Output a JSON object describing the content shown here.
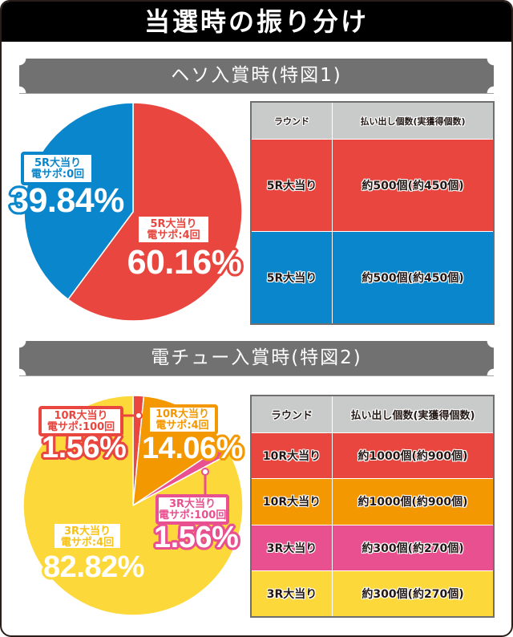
{
  "title": "当選時の振り分け",
  "colors": {
    "red": "#e8463f",
    "blue": "#0a86cc",
    "orange": "#f39800",
    "pink": "#e8508f",
    "yellow": "#fdd83a",
    "yellow_text": "#f5c218",
    "table_header": "#c9caca"
  },
  "sections": [
    {
      "banner": "ヘソ入賞時(特図1)",
      "labels": [
        {
          "line1": "5R大当り",
          "line2": "電サポ:0回",
          "pct": "39.84%",
          "color": "#0a86cc"
        },
        {
          "line1": "5R大当り",
          "line2": "電サポ:4回",
          "pct": "60.16%",
          "color": "#e8463f"
        }
      ],
      "table": {
        "headers": [
          "ラウンド",
          "払い出し個数(実獲得個数)"
        ],
        "rows": [
          {
            "round": "5R大当り",
            "payout": "約500個(約450個)",
            "color": "#e8463f"
          },
          {
            "round": "5R大当り",
            "payout": "約500個(約450個)",
            "color": "#0a86cc"
          }
        ]
      }
    },
    {
      "banner": "電チュー入賞時(特図2)",
      "labels": [
        {
          "line1": "10R大当り",
          "line2": "電サポ:100回",
          "pct": "1.56%",
          "color": "#e8463f"
        },
        {
          "line1": "10R大当り",
          "line2": "電サポ:4回",
          "pct": "14.06%",
          "color": "#f39800"
        },
        {
          "line1": "3R大当り",
          "line2": "電サポ:100回",
          "pct": "1.56%",
          "color": "#e8508f"
        },
        {
          "line1": "3R大当り",
          "line2": "電サポ:4回",
          "pct": "82.82%",
          "color": "#fdd83a",
          "text_color": "#f5c218"
        }
      ],
      "table": {
        "headers": [
          "ラウンド",
          "払い出し個数(実獲得個数)"
        ],
        "rows": [
          {
            "round": "10R大当り",
            "payout": "約1000個(約900個)",
            "color": "#e8463f"
          },
          {
            "round": "10R大当り",
            "payout": "約1000個(約900個)",
            "color": "#f39800"
          },
          {
            "round": "3R大当り",
            "payout": "約300個(約270個)",
            "color": "#e8508f"
          },
          {
            "round": "3R大当り",
            "payout": "約300個(約270個)",
            "color": "#fdd83a"
          }
        ]
      }
    }
  ],
  "chart_data": [
    {
      "type": "pie",
      "title": "ヘソ入賞時(特図1)",
      "categories": [
        "5R大当り 電サポ:4回",
        "5R大当り 電サポ:0回"
      ],
      "values": [
        60.16,
        39.84
      ],
      "colors": [
        "#e8463f",
        "#0a86cc"
      ],
      "start": "12 o'clock, clockwise"
    },
    {
      "type": "pie",
      "title": "電チュー入賞時(特図2)",
      "categories": [
        "10R大当り 電サポ:100回",
        "10R大当り 電サポ:4回",
        "3R大当り 電サポ:100回",
        "3R大当り 電サポ:4回"
      ],
      "values": [
        1.56,
        14.06,
        1.56,
        82.82
      ],
      "colors": [
        "#e8463f",
        "#f39800",
        "#e8508f",
        "#fdd83a"
      ],
      "start": "12 o'clock, clockwise"
    }
  ]
}
